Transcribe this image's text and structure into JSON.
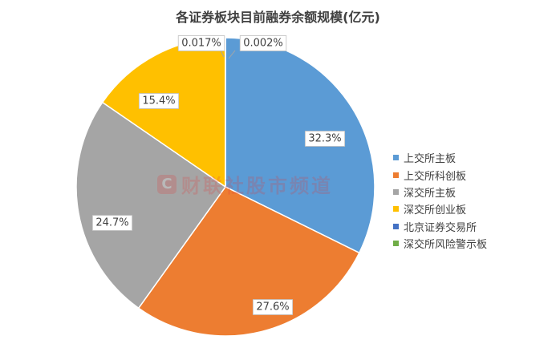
{
  "chart_data": {
    "type": "pie",
    "title": "各证券板块目前融券余额规模(亿元)",
    "start_angle_deg": 0,
    "direction": "clockwise",
    "legend_position": "right",
    "slices": [
      {
        "name": "上交所主板",
        "value": 32.3,
        "label": "32.3%",
        "color": "#5b9bd5"
      },
      {
        "name": "上交所科创板",
        "value": 27.6,
        "label": "27.6%",
        "color": "#ed7d31"
      },
      {
        "name": "深交所主板",
        "value": 24.7,
        "label": "24.7%",
        "color": "#a5a5a5"
      },
      {
        "name": "深交所创业板",
        "value": 15.4,
        "label": "15.4%",
        "color": "#ffc000"
      },
      {
        "name": "北京证券交易所",
        "value": 0.017,
        "label": "0.017%",
        "color": "#4472c4"
      },
      {
        "name": "深交所风险警示板",
        "value": 0.002,
        "label": "0.002%",
        "color": "#70ad47"
      }
    ]
  },
  "watermark": {
    "badge": "C",
    "text": "财联社股市频道"
  }
}
